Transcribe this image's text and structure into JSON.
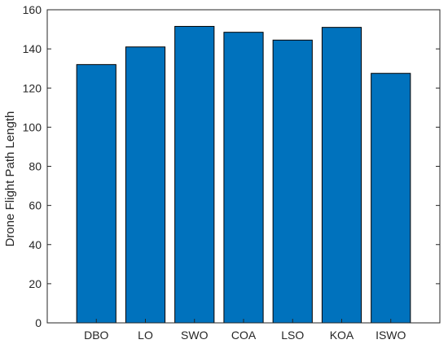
{
  "chart_data": {
    "type": "bar",
    "title": "",
    "xlabel": "",
    "ylabel": "Drone Flight Path Length",
    "categories": [
      "DBO",
      "LO",
      "SWO",
      "COA",
      "LSO",
      "KOA",
      "ISWO"
    ],
    "values": [
      132,
      141,
      151.5,
      148.5,
      144.5,
      151,
      127.5
    ],
    "ylim": [
      0,
      160
    ],
    "yticks": [
      0,
      20,
      40,
      60,
      80,
      100,
      120,
      140,
      160
    ],
    "grid": false,
    "legend": "none",
    "colors": {
      "bar_fill": "#0072BD",
      "bar_edge": "#000000",
      "axis": "#262626"
    }
  }
}
